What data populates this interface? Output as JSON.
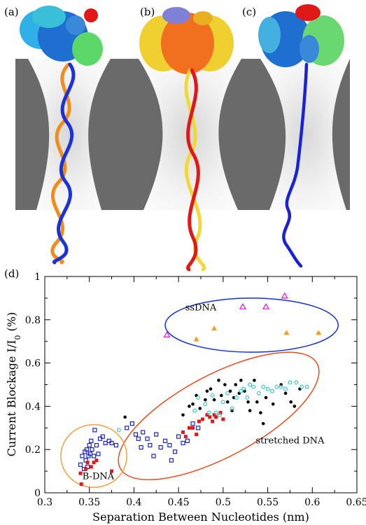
{
  "panels": {
    "a": "(a)",
    "b": "(b)",
    "c": "(c)",
    "d": "(d)"
  },
  "colors": {
    "membrane": "#696969",
    "pore": "#eeeeee",
    "protein_a": [
      "#1e6fd0",
      "#2fb0e8",
      "#3a88d8",
      "#5cd86a",
      "#e01818"
    ],
    "protein_b": [
      "#f07020",
      "#f0d030",
      "#e8b020",
      "#8080d8"
    ],
    "protein_c": [
      "#1e6fd0",
      "#44b0e0",
      "#6ad870",
      "#e01818"
    ],
    "dna_a_strand1": "#1a32d8",
    "dna_a_strand2": "#f08c1a",
    "dna_b_strand1": "#e21818",
    "dna_b_strand2": "#f0d83a",
    "ssdna": "#1a22d8",
    "ellipse_ssDNA": "#1030d8",
    "ellipse_stretched": "#f04818",
    "ellipse_BDNA": "#f0a040"
  },
  "chart_data": {
    "type": "scatter",
    "title": "",
    "xlabel": "Separation Between Nucleotides (nm)",
    "ylabel": "Current Blockage I/I",
    "ylabel_sub": "0",
    "ylabel_unit": " (%)",
    "xlim": [
      0.3,
      0.65
    ],
    "ylim": [
      0,
      1
    ],
    "xticks": [
      "0.3",
      "0.35",
      "0.4",
      "0.45",
      "0.5",
      "0.55",
      "0.6",
      "0.65"
    ],
    "yticks": [
      "0",
      "0.2",
      "0.4",
      "0.6",
      "0.8",
      "1"
    ],
    "annotations": [
      {
        "text": "ssDNA",
        "x": 0.475,
        "y": 0.86
      },
      {
        "text": "stretched DNA",
        "x": 0.575,
        "y": 0.245
      },
      {
        "text": "B-DNA",
        "x": 0.36,
        "y": 0.08
      }
    ],
    "ellipses": [
      {
        "label": "ssDNA",
        "cx": 0.532,
        "cy": 0.775,
        "rx": 0.097,
        "ry": 0.125,
        "rotate": 0,
        "color": "#1030d8"
      },
      {
        "label": "stretched DNA",
        "cx": 0.495,
        "cy": 0.355,
        "rx": 0.125,
        "ry": 0.19,
        "rotate": 0,
        "color": "#f04818"
      },
      {
        "label": "B-DNA",
        "cx": 0.355,
        "cy": 0.17,
        "rx": 0.037,
        "ry": 0.145,
        "rotate": 0,
        "color": "#f0a040"
      }
    ],
    "series": [
      {
        "marker": "open-square",
        "color": "#1a22c8",
        "points": [
          [
            0.34,
            0.13
          ],
          [
            0.342,
            0.17
          ],
          [
            0.344,
            0.11
          ],
          [
            0.345,
            0.19
          ],
          [
            0.346,
            0.15
          ],
          [
            0.347,
            0.2
          ],
          [
            0.348,
            0.12
          ],
          [
            0.349,
            0.17
          ],
          [
            0.35,
            0.22
          ],
          [
            0.351,
            0.18
          ],
          [
            0.352,
            0.24
          ],
          [
            0.353,
            0.2
          ],
          [
            0.355,
            0.17
          ],
          [
            0.356,
            0.29
          ],
          [
            0.358,
            0.22
          ],
          [
            0.36,
            0.18
          ],
          [
            0.362,
            0.25
          ],
          [
            0.365,
            0.26
          ],
          [
            0.368,
            0.23
          ],
          [
            0.372,
            0.24
          ],
          [
            0.375,
            0.23
          ],
          [
            0.38,
            0.22
          ],
          [
            0.392,
            0.3
          ],
          [
            0.398,
            0.32
          ],
          [
            0.402,
            0.27
          ],
          [
            0.405,
            0.25
          ],
          [
            0.408,
            0.21
          ],
          [
            0.41,
            0.28
          ],
          [
            0.415,
            0.25
          ],
          [
            0.418,
            0.22
          ],
          [
            0.422,
            0.17
          ],
          [
            0.425,
            0.27
          ],
          [
            0.43,
            0.21
          ],
          [
            0.435,
            0.24
          ],
          [
            0.44,
            0.22
          ],
          [
            0.442,
            0.15
          ],
          [
            0.446,
            0.19
          ],
          [
            0.45,
            0.26
          ],
          [
            0.455,
            0.23
          ],
          [
            0.46,
            0.24
          ],
          [
            0.466,
            0.32
          ],
          [
            0.472,
            0.3
          ]
        ]
      },
      {
        "marker": "filled-square",
        "color": "#e01818",
        "points": [
          [
            0.34,
            0.09
          ],
          [
            0.341,
            0.04
          ],
          [
            0.346,
            0.11
          ],
          [
            0.348,
            0.14
          ],
          [
            0.352,
            0.12
          ],
          [
            0.355,
            0.14
          ],
          [
            0.358,
            0.15
          ],
          [
            0.375,
            0.1
          ],
          [
            0.455,
            0.28
          ],
          [
            0.458,
            0.26
          ],
          [
            0.462,
            0.3
          ],
          [
            0.466,
            0.3
          ],
          [
            0.47,
            0.27
          ],
          [
            0.473,
            0.33
          ],
          [
            0.477,
            0.34
          ],
          [
            0.482,
            0.36
          ],
          [
            0.485,
            0.35
          ],
          [
            0.488,
            0.33
          ],
          [
            0.49,
            0.36
          ],
          [
            0.492,
            0.35
          ],
          [
            0.497,
            0.37
          ],
          [
            0.5,
            0.34
          ]
        ]
      },
      {
        "marker": "filled-circle",
        "color": "#000000",
        "points": [
          [
            0.39,
            0.35
          ],
          [
            0.455,
            0.36
          ],
          [
            0.462,
            0.4
          ],
          [
            0.466,
            0.41
          ],
          [
            0.47,
            0.45
          ],
          [
            0.474,
            0.39
          ],
          [
            0.48,
            0.43
          ],
          [
            0.482,
            0.47
          ],
          [
            0.486,
            0.48
          ],
          [
            0.49,
            0.43
          ],
          [
            0.495,
            0.52
          ],
          [
            0.498,
            0.45
          ],
          [
            0.502,
            0.5
          ],
          [
            0.505,
            0.42
          ],
          [
            0.508,
            0.47
          ],
          [
            0.51,
            0.38
          ],
          [
            0.512,
            0.44
          ],
          [
            0.514,
            0.5
          ],
          [
            0.518,
            0.46
          ],
          [
            0.52,
            0.52
          ],
          [
            0.524,
            0.47
          ],
          [
            0.528,
            0.42
          ],
          [
            0.53,
            0.38
          ],
          [
            0.535,
            0.52
          ],
          [
            0.538,
            0.42
          ],
          [
            0.542,
            0.37
          ],
          [
            0.545,
            0.32
          ],
          [
            0.548,
            0.44
          ],
          [
            0.556,
            0.41
          ],
          [
            0.565,
            0.5
          ],
          [
            0.57,
            0.46
          ],
          [
            0.576,
            0.42
          ],
          [
            0.58,
            0.4
          ],
          [
            0.586,
            0.48
          ]
        ]
      },
      {
        "marker": "open-circle",
        "color": "#38c8c8",
        "points": [
          [
            0.383,
            0.29
          ],
          [
            0.468,
            0.38
          ],
          [
            0.472,
            0.44
          ],
          [
            0.48,
            0.41
          ],
          [
            0.484,
            0.37
          ],
          [
            0.488,
            0.45
          ],
          [
            0.492,
            0.37
          ],
          [
            0.496,
            0.36
          ],
          [
            0.5,
            0.42
          ],
          [
            0.505,
            0.46
          ],
          [
            0.51,
            0.39
          ],
          [
            0.515,
            0.44
          ],
          [
            0.52,
            0.47
          ],
          [
            0.523,
            0.48
          ],
          [
            0.527,
            0.44
          ],
          [
            0.53,
            0.5
          ],
          [
            0.534,
            0.49
          ],
          [
            0.54,
            0.46
          ],
          [
            0.545,
            0.49
          ],
          [
            0.55,
            0.48
          ],
          [
            0.555,
            0.47
          ],
          [
            0.56,
            0.49
          ],
          [
            0.565,
            0.49
          ],
          [
            0.57,
            0.48
          ],
          [
            0.575,
            0.51
          ],
          [
            0.582,
            0.51
          ],
          [
            0.588,
            0.49
          ],
          [
            0.594,
            0.49
          ]
        ]
      },
      {
        "marker": "filled-triangle",
        "color": "#f0a020",
        "points": [
          [
            0.47,
            0.71
          ],
          [
            0.49,
            0.76
          ],
          [
            0.571,
            0.74
          ],
          [
            0.607,
            0.74
          ]
        ]
      },
      {
        "marker": "open-triangle",
        "color": "#e020e0",
        "points": [
          [
            0.437,
            0.73
          ],
          [
            0.522,
            0.86
          ],
          [
            0.548,
            0.86
          ],
          [
            0.569,
            0.91
          ]
        ]
      }
    ]
  }
}
